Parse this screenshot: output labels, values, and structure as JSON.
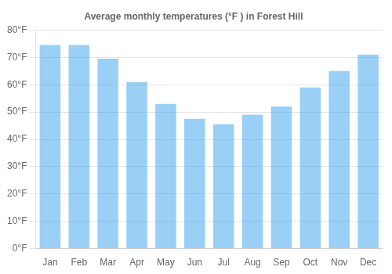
{
  "chart_data": {
    "type": "bar",
    "title": "Average monthly temperatures (°F ) in Forest Hill",
    "categories": [
      "Jan",
      "Feb",
      "Mar",
      "Apr",
      "May",
      "Jun",
      "Jul",
      "Aug",
      "Sep",
      "Oct",
      "Nov",
      "Dec"
    ],
    "values": [
      74.5,
      74.5,
      69.5,
      61,
      53,
      47.5,
      45.5,
      49,
      52,
      59,
      65,
      71
    ],
    "ylim": [
      0,
      80
    ],
    "yticks": [
      {
        "value": 0,
        "label": "0°F"
      },
      {
        "value": 10,
        "label": "10°F"
      },
      {
        "value": 20,
        "label": "20°F"
      },
      {
        "value": 30,
        "label": "30°F"
      },
      {
        "value": 40,
        "label": "40°F"
      },
      {
        "value": 50,
        "label": "50°F"
      },
      {
        "value": 60,
        "label": "60°F"
      },
      {
        "value": 70,
        "label": "70°F"
      },
      {
        "value": 80,
        "label": "80°F"
      }
    ],
    "grid": true
  }
}
